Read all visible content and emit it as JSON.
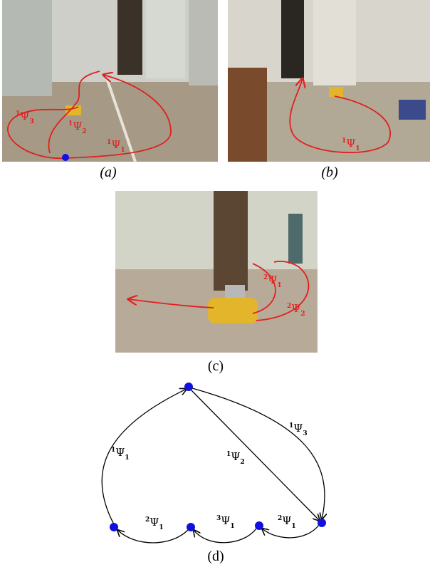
{
  "panels": [
    {
      "caption": "(a)",
      "labels": [
        {
          "sup": "1",
          "base": "Ψ",
          "sub": "3"
        },
        {
          "sup": "1",
          "base": "Ψ",
          "sub": "2"
        },
        {
          "sup": "1",
          "base": "Ψ",
          "sub": "1"
        }
      ]
    },
    {
      "caption": "(b)",
      "labels": [
        {
          "sup": "1",
          "base": "Ψ",
          "sub": "1"
        }
      ]
    },
    {
      "caption": "(c)",
      "labels": [
        {
          "sup": "2",
          "base": "Ψ",
          "sub": "1"
        },
        {
          "sup": "2",
          "base": "Ψ",
          "sub": "2"
        }
      ]
    },
    {
      "caption": "(d)",
      "labels": [
        {
          "sup": "1",
          "base": "Ψ",
          "sub": "1"
        },
        {
          "sup": "1",
          "base": "Ψ",
          "sub": "2"
        },
        {
          "sup": "1",
          "base": "Ψ",
          "sub": "3"
        },
        {
          "sup": "2",
          "base": "Ψ",
          "sub": "1"
        },
        {
          "sup": "3",
          "base": "Ψ",
          "sub": "1"
        },
        {
          "sup": "2",
          "base": "Ψ",
          "sub": "1"
        }
      ]
    }
  ]
}
